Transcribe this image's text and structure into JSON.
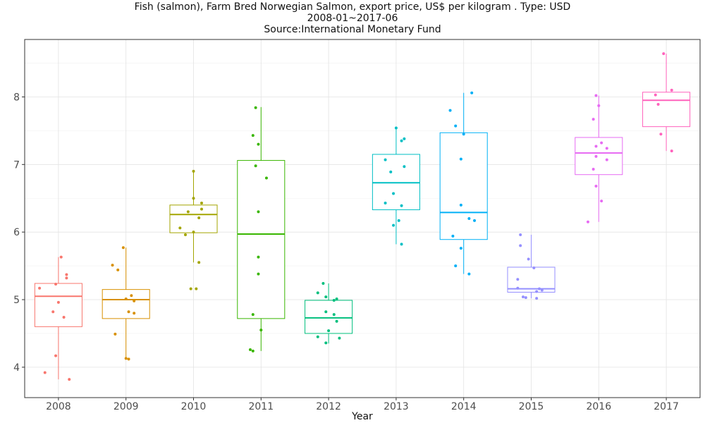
{
  "chart_data": {
    "type": "box",
    "title": "Fish (salmon), Farm Bred Norwegian Salmon, export price, US$ per kilogram . Type: USD",
    "subtitle": "2008-01~2017-06",
    "source": "Source:International Monetary Fund",
    "xlabel": "Year",
    "ylabel": "",
    "ylim": [
      3.55,
      8.85
    ],
    "yticks": [
      4,
      5,
      6,
      7,
      8
    ],
    "grid": true,
    "categories": [
      "2008",
      "2009",
      "2010",
      "2011",
      "2012",
      "2013",
      "2014",
      "2015",
      "2016",
      "2017"
    ],
    "colors": [
      "#F8766D",
      "#D89000",
      "#A3A500",
      "#39B600",
      "#00BF7D",
      "#00BFC4",
      "#00B0F6",
      "#9590FF",
      "#E76BF3",
      "#FF62BC"
    ],
    "boxes": [
      {
        "year": "2008",
        "min": 3.82,
        "q1": 4.6,
        "median": 5.05,
        "q3": 5.24,
        "max": 5.63
      },
      {
        "year": "2009",
        "min": 4.12,
        "q1": 4.72,
        "median": 5.0,
        "q3": 5.15,
        "max": 5.77
      },
      {
        "year": "2010",
        "min": 5.55,
        "q1": 5.99,
        "median": 6.26,
        "q3": 6.4,
        "max": 6.9
      },
      {
        "year": "2011",
        "min": 4.24,
        "q1": 4.72,
        "median": 5.97,
        "q3": 7.06,
        "max": 7.85
      },
      {
        "year": "2012",
        "min": 4.35,
        "q1": 4.5,
        "median": 4.73,
        "q3": 4.99,
        "max": 5.24
      },
      {
        "year": "2013",
        "min": 5.82,
        "q1": 6.33,
        "median": 6.73,
        "q3": 7.15,
        "max": 7.54
      },
      {
        "year": "2014",
        "min": 5.38,
        "q1": 5.89,
        "median": 6.29,
        "q3": 7.47,
        "max": 8.06
      },
      {
        "year": "2015",
        "min": 5.02,
        "q1": 5.11,
        "median": 5.16,
        "q3": 5.48,
        "max": 5.96
      },
      {
        "year": "2016",
        "min": 6.15,
        "q1": 6.85,
        "median": 7.17,
        "q3": 7.4,
        "max": 8.02
      },
      {
        "year": "2017",
        "min": 7.2,
        "q1": 7.56,
        "median": 7.95,
        "q3": 8.07,
        "max": 8.64
      }
    ],
    "points": [
      [
        [
          5.63,
          1
        ],
        [
          5.37,
          3
        ],
        [
          5.32,
          3
        ],
        [
          5.23,
          -1
        ],
        [
          5.17,
          -7
        ],
        [
          4.96,
          0
        ],
        [
          4.82,
          -2
        ],
        [
          4.74,
          2
        ],
        [
          4.17,
          -1
        ],
        [
          3.92,
          -5
        ],
        [
          3.82,
          4
        ]
      ],
      [
        [
          5.77,
          -1
        ],
        [
          5.51,
          -5
        ],
        [
          5.44,
          -3
        ],
        [
          5.06,
          2
        ],
        [
          5.01,
          0
        ],
        [
          4.98,
          3
        ],
        [
          4.82,
          1
        ],
        [
          4.8,
          3
        ],
        [
          4.49,
          -4
        ],
        [
          4.13,
          0
        ],
        [
          4.12,
          1
        ]
      ],
      [
        [
          6.9,
          0
        ],
        [
          6.5,
          0
        ],
        [
          6.43,
          3
        ],
        [
          6.34,
          3
        ],
        [
          6.3,
          -2
        ],
        [
          6.21,
          2
        ],
        [
          6.06,
          -5
        ],
        [
          6.0,
          0
        ],
        [
          5.96,
          -3
        ],
        [
          5.55,
          2
        ],
        [
          5.16,
          -1
        ],
        [
          5.16,
          1
        ]
      ],
      [
        [
          7.84,
          -2
        ],
        [
          7.43,
          -3
        ],
        [
          7.3,
          -1
        ],
        [
          6.98,
          -2
        ],
        [
          6.8,
          2
        ],
        [
          6.3,
          -1
        ],
        [
          5.63,
          -1
        ],
        [
          5.38,
          -1
        ],
        [
          4.78,
          -3
        ],
        [
          4.55,
          0
        ],
        [
          4.26,
          -4
        ],
        [
          4.24,
          -3
        ]
      ],
      [
        [
          5.24,
          -2
        ],
        [
          5.1,
          -4
        ],
        [
          5.04,
          -1
        ],
        [
          5.01,
          3
        ],
        [
          4.99,
          2
        ],
        [
          4.82,
          -1
        ],
        [
          4.78,
          2
        ],
        [
          4.68,
          3
        ],
        [
          4.54,
          0
        ],
        [
          4.45,
          -4
        ],
        [
          4.43,
          4
        ],
        [
          4.36,
          -1
        ]
      ],
      [
        [
          7.54,
          0
        ],
        [
          7.38,
          3
        ],
        [
          7.35,
          2
        ],
        [
          7.07,
          -4
        ],
        [
          6.97,
          3
        ],
        [
          6.89,
          -2
        ],
        [
          6.57,
          -1
        ],
        [
          6.43,
          -4
        ],
        [
          6.39,
          2
        ],
        [
          6.17,
          1
        ],
        [
          6.1,
          -1
        ],
        [
          5.82,
          2
        ]
      ],
      [
        [
          8.06,
          3
        ],
        [
          7.8,
          -5
        ],
        [
          7.57,
          -3
        ],
        [
          7.45,
          0
        ],
        [
          7.08,
          -1
        ],
        [
          6.4,
          -1
        ],
        [
          6.2,
          2
        ],
        [
          6.17,
          4
        ],
        [
          5.94,
          -4
        ],
        [
          5.76,
          -1
        ],
        [
          5.5,
          -3
        ],
        [
          5.38,
          2
        ]
      ],
      [
        [
          5.96,
          -4
        ],
        [
          5.8,
          -4
        ],
        [
          5.6,
          -1
        ],
        [
          5.47,
          1
        ],
        [
          5.3,
          -5
        ],
        [
          5.17,
          -5
        ],
        [
          5.16,
          3
        ],
        [
          5.14,
          4
        ],
        [
          5.12,
          2
        ],
        [
          5.04,
          -3
        ],
        [
          5.03,
          -2
        ],
        [
          5.02,
          2
        ]
      ],
      [
        [
          8.02,
          -1
        ],
        [
          7.87,
          0
        ],
        [
          7.67,
          -2
        ],
        [
          7.32,
          1
        ],
        [
          7.27,
          -1
        ],
        [
          7.24,
          3
        ],
        [
          7.12,
          -1
        ],
        [
          7.07,
          3
        ],
        [
          6.93,
          -2
        ],
        [
          6.68,
          -1
        ],
        [
          6.46,
          1
        ],
        [
          6.15,
          -4
        ]
      ],
      [
        [
          8.64,
          -1
        ],
        [
          8.1,
          2
        ],
        [
          8.03,
          -4
        ],
        [
          7.89,
          -3
        ],
        [
          7.45,
          -2
        ],
        [
          7.2,
          2
        ]
      ]
    ]
  }
}
